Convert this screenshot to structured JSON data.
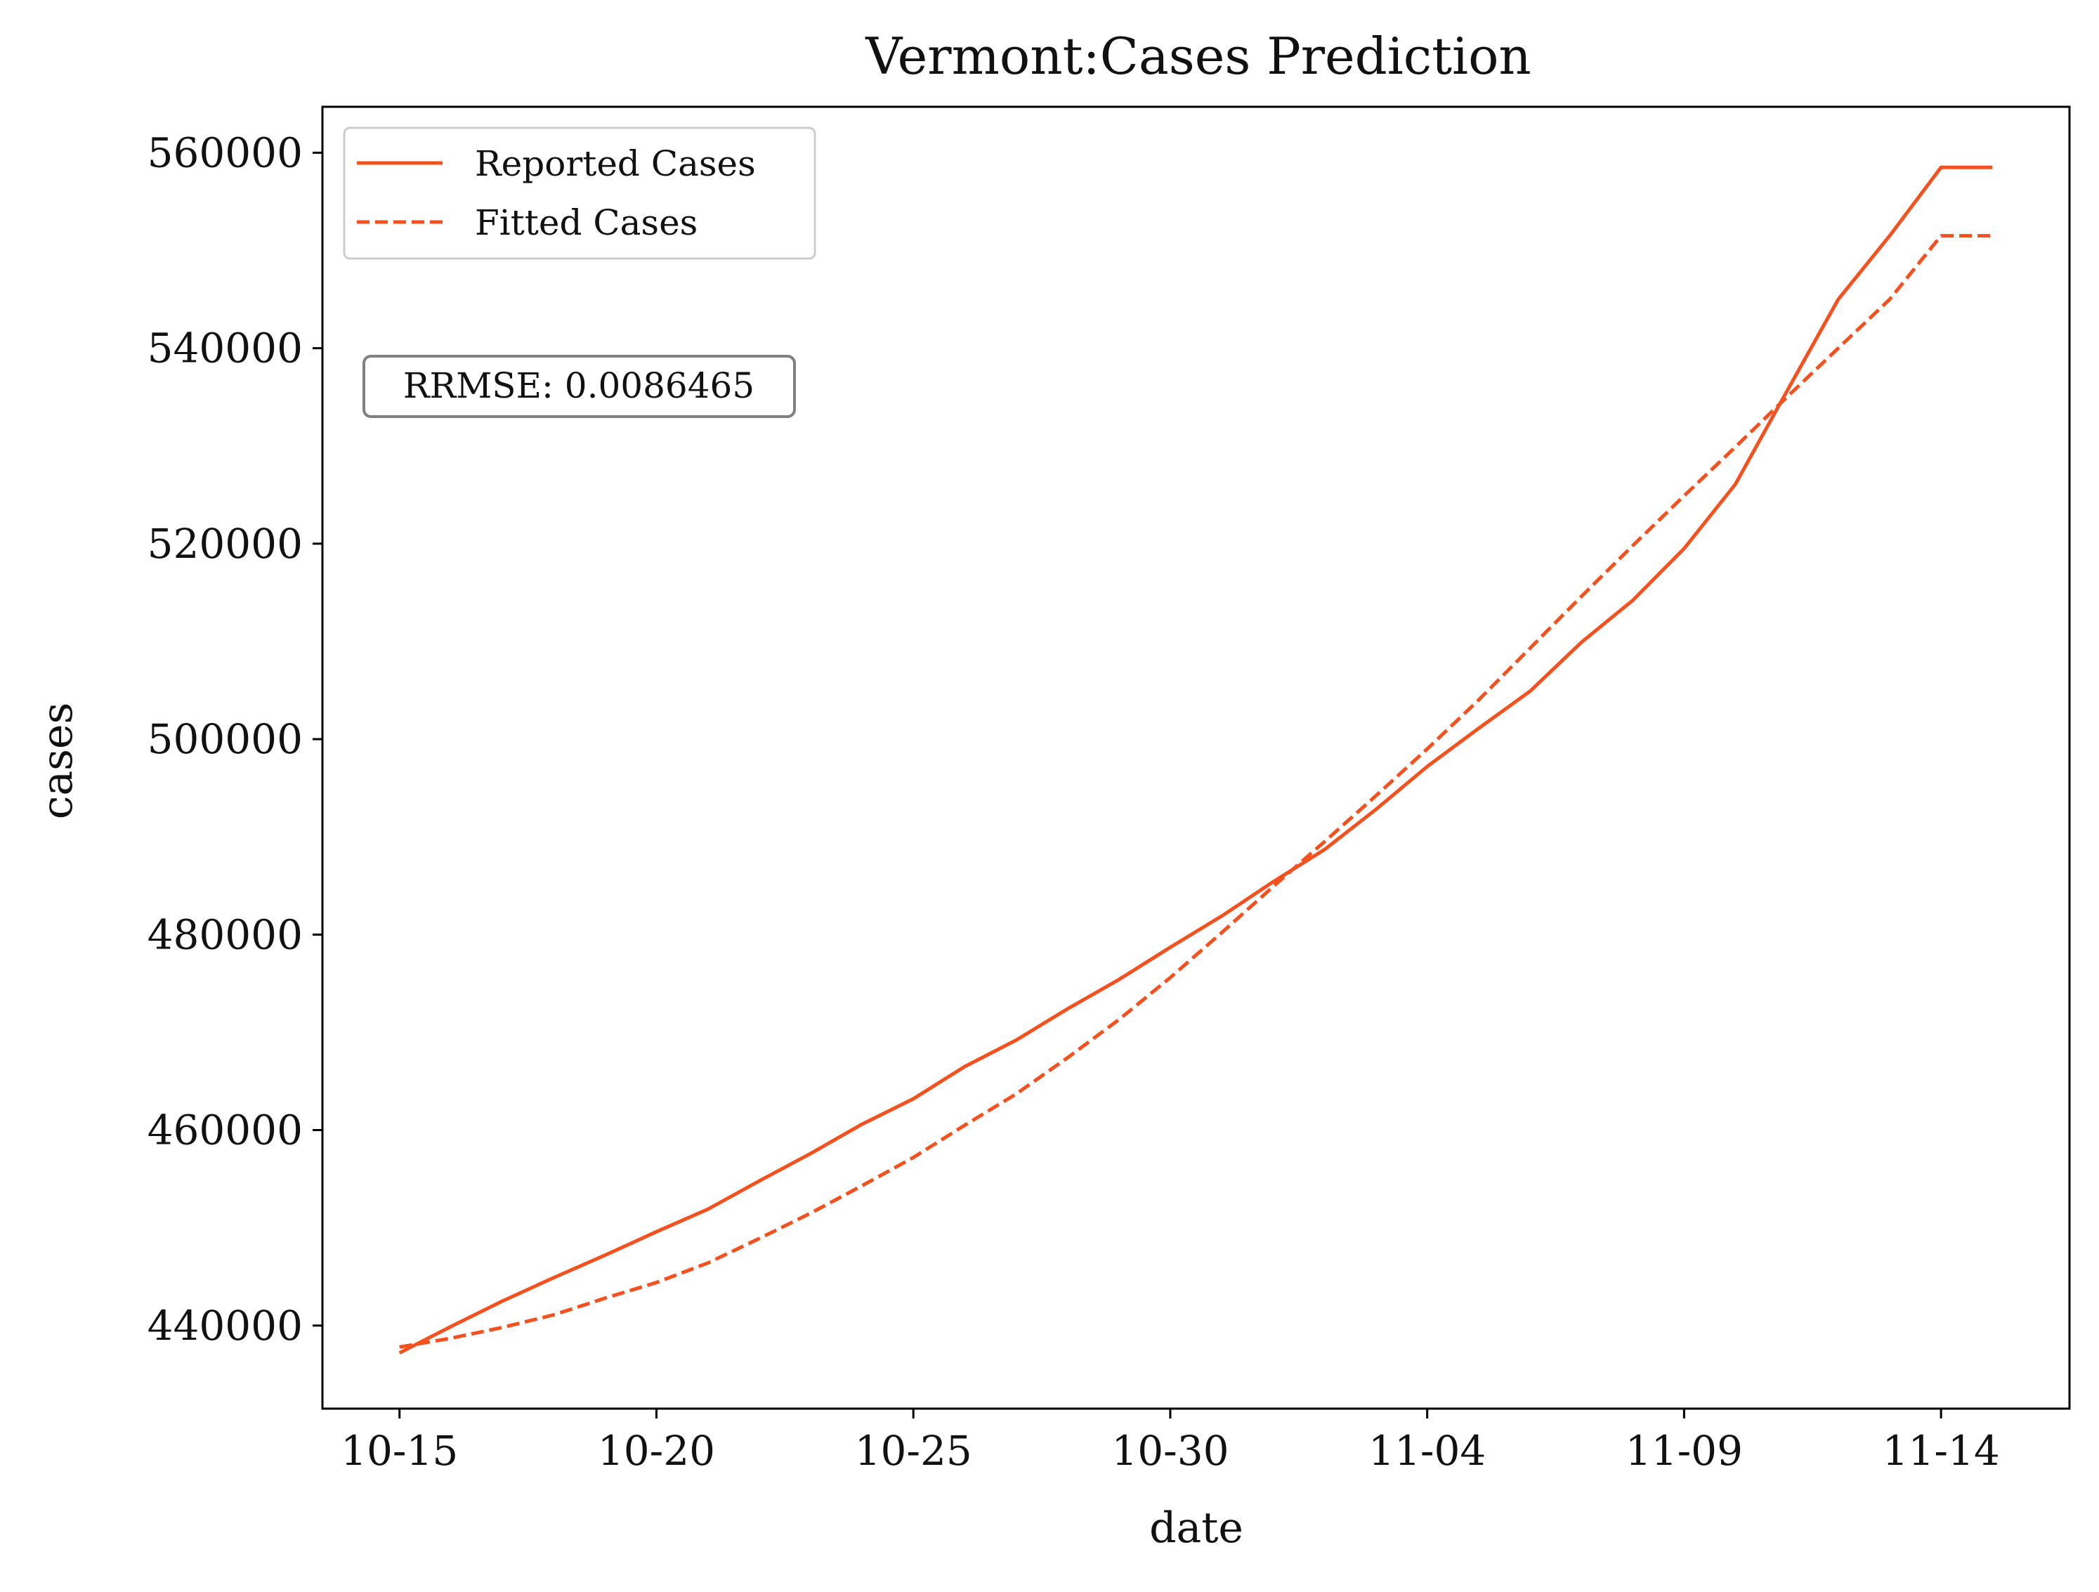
{
  "chart_data": {
    "type": "line",
    "title": "Vermont:Cases Prediction",
    "xlabel": "date",
    "ylabel": "cases",
    "x": [
      "10-15",
      "10-16",
      "10-17",
      "10-18",
      "10-19",
      "10-20",
      "10-21",
      "10-22",
      "10-23",
      "10-24",
      "10-25",
      "10-26",
      "10-27",
      "10-28",
      "10-29",
      "10-30",
      "10-31",
      "11-01",
      "11-02",
      "11-03",
      "11-04",
      "11-05",
      "11-06",
      "11-07",
      "11-08",
      "11-09",
      "11-10",
      "11-11",
      "11-12",
      "11-13",
      "11-14",
      "11-15"
    ],
    "xticks": [
      "10-15",
      "10-20",
      "10-25",
      "10-30",
      "11-04",
      "11-09",
      "11-14"
    ],
    "yticks": [
      440000,
      460000,
      480000,
      500000,
      520000,
      540000,
      560000
    ],
    "ylim": [
      431500,
      564700
    ],
    "xlim": [
      -1.5,
      32.5
    ],
    "series": [
      {
        "name": "Reported Cases",
        "style": "solid",
        "values": [
          437200,
          439900,
          442500,
          444900,
          447200,
          449600,
          451900,
          454800,
          457600,
          460600,
          463200,
          466500,
          469200,
          472400,
          475400,
          478700,
          481900,
          485400,
          488700,
          492800,
          497200,
          501100,
          504900,
          509900,
          514200,
          519500,
          526100,
          535600,
          545000,
          551500,
          558500,
          558500
        ]
      },
      {
        "name": "Fitted Cases",
        "style": "dashed",
        "values": [
          437800,
          438700,
          439800,
          441100,
          442800,
          444400,
          446400,
          448900,
          451500,
          454300,
          457200,
          460500,
          463700,
          467400,
          471300,
          475600,
          480200,
          484900,
          489500,
          494200,
          499000,
          504000,
          509300,
          514600,
          519800,
          524900,
          529900,
          535000,
          540000,
          545000,
          551500,
          551500
        ]
      }
    ],
    "legend_position": "top-left",
    "annotation": "RRMSE: 0.0086465",
    "line_color": "#f4511e"
  }
}
